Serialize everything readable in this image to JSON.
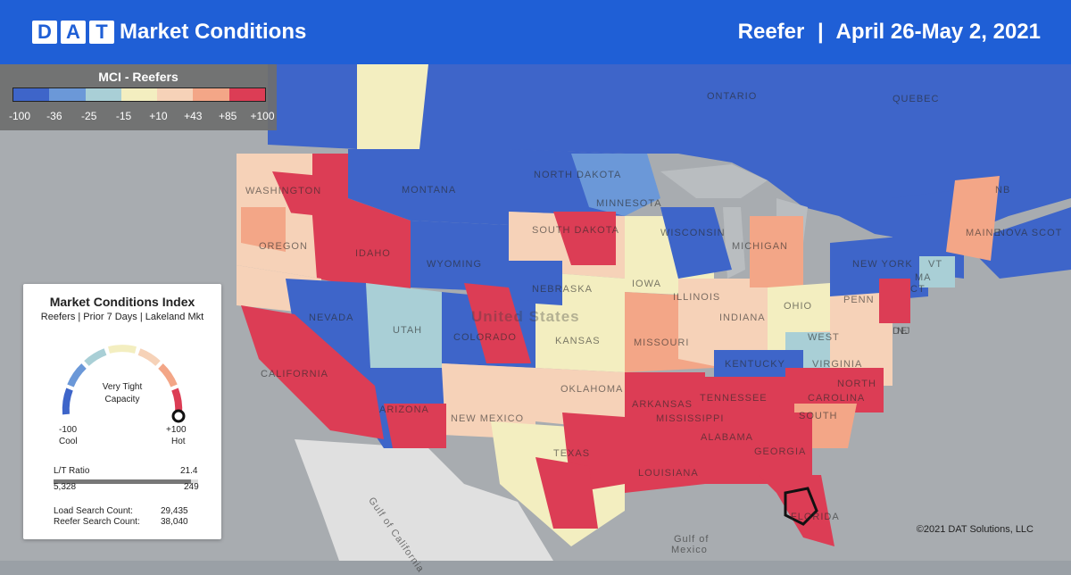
{
  "header": {
    "logo_letters": [
      "D",
      "A",
      "T"
    ],
    "title": "Market Conditions",
    "equipment": "Reefer",
    "separator": "|",
    "date_range": "April 26-May 2, 2021"
  },
  "legend": {
    "title": "MCI - Reefers",
    "colors": [
      "#3e65c9",
      "#6b98d8",
      "#a9cfd6",
      "#f3eec0",
      "#f6d2b8",
      "#f3a687",
      "#dc3d55"
    ],
    "ticks": [
      "-100",
      "-36",
      "-25",
      "-15",
      "+10",
      "+43",
      "+85",
      "+100"
    ]
  },
  "mci_panel": {
    "title": "Market Conditions Index",
    "subtitle": "Reefers | Prior 7 Days | Lakeland Mkt",
    "status_line1": "Very Tight",
    "status_line2": "Capacity",
    "min_value": "-100",
    "min_label": "Cool",
    "max_value": "+100",
    "max_label": "Hot",
    "lt_ratio_label": "L/T Ratio",
    "lt_ratio_value": "21.4",
    "loads": "5,328",
    "trucks": "249",
    "load_search_label": "Load Search Count:",
    "load_search_value": "29,435",
    "reefer_search_label": "Reefer Search Count:",
    "reefer_search_value": "38,040"
  },
  "map_labels": {
    "country": "United States",
    "regions": [
      "WASHINGTON",
      "OREGON",
      "IDAHO",
      "MONTANA",
      "NORTH DAKOTA",
      "MINNESOTA",
      "SOUTH DAKOTA",
      "WYOMING",
      "NEBRASKA",
      "IOWA",
      "NEVADA",
      "UTAH",
      "COLORADO",
      "KANSAS",
      "MISSOURI",
      "ILLINOIS",
      "INDIANA",
      "OHIO",
      "CALIFORNIA",
      "ARIZONA",
      "NEW MEXICO",
      "OKLAHOMA",
      "ARKANSAS",
      "TENNESSEE",
      "TEXAS",
      "LOUISIANA",
      "MISSISSIPPI",
      "ALABAMA",
      "GEORGIA",
      "FLORIDA",
      "WISCONSIN",
      "MICHIGAN",
      "ONTARIO",
      "QUEBEC",
      "NEW YORK",
      "PENN",
      "VIRGINIA",
      "NORTH",
      "CAROLINA",
      "SOUTH",
      "WEST",
      "KENTUCKY",
      "MAINE",
      "NB",
      "NOVA SCOT",
      "DE",
      "NJ",
      "MA",
      "CT",
      "VT"
    ],
    "water": [
      "Gulf of",
      "Mexico",
      "Gulf of California"
    ]
  },
  "copyright": "©2021 DAT Solutions, LLC"
}
